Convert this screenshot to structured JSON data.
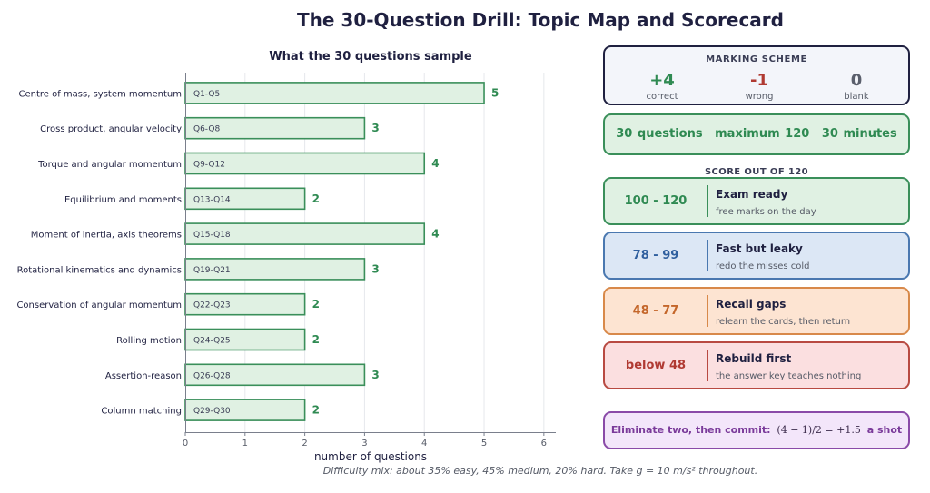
{
  "title": "The 30-Question Drill: Topic Map and Scorecard",
  "footer": "Difficulty mix: about 35% easy, 45% medium, 20% hard. Take g = 10 m/s² throughout.",
  "chart_data": {
    "type": "bar",
    "orientation": "horizontal",
    "title": "What the 30 questions sample",
    "xlabel": "number of questions",
    "ylabel": "",
    "xlim": [
      0,
      6.2
    ],
    "xticks": [
      0,
      1,
      2,
      3,
      4,
      5,
      6
    ],
    "grid": true,
    "categories": [
      "Centre of mass, system momentum",
      "Cross product, angular velocity",
      "Torque and angular momentum",
      "Equilibrium and moments",
      "Moment of inertia, axis theorems",
      "Rotational kinematics and dynamics",
      "Conservation of angular momentum",
      "Rolling motion",
      "Assertion-reason",
      "Column matching"
    ],
    "ranges": [
      "Q1-Q5",
      "Q6-Q8",
      "Q9-Q12",
      "Q13-Q14",
      "Q15-Q18",
      "Q19-Q21",
      "Q22-Q23",
      "Q24-Q25",
      "Q26-Q28",
      "Q29-Q30"
    ],
    "values": [
      5,
      3,
      4,
      2,
      4,
      3,
      2,
      2,
      3,
      2
    ],
    "colors": {
      "fill": "#e0f1e3",
      "stroke": "#3a8f5a",
      "label": "#2f8a52",
      "axis": "#7a7f8c",
      "grid": "#e6e8ec"
    }
  },
  "marking_scheme": {
    "heading": "MARKING SCHEME",
    "items": [
      {
        "value": "+4",
        "label": "correct",
        "color": "#2f8a52"
      },
      {
        "value": "-1",
        "label": "wrong",
        "color": "#b03a32"
      },
      {
        "value": "0",
        "label": "blank",
        "color": "#5a5f6c"
      }
    ]
  },
  "exam_facts": [
    "30 questions",
    "maximum 120",
    "30 minutes"
  ],
  "score_heading": "SCORE OUT OF 120",
  "score_bands": [
    {
      "range": "100 - 120",
      "title": "Exam ready",
      "subtitle": "free marks on the day",
      "bg": "#e0f1e3",
      "border": "#3a8f5a",
      "text": "#2f8a52"
    },
    {
      "range": "78 - 99",
      "title": "Fast but leaky",
      "subtitle": "redo the misses cold",
      "bg": "#dce7f5",
      "border": "#4a78b0",
      "text": "#2f5f9e"
    },
    {
      "range": "48 - 77",
      "title": "Recall gaps",
      "subtitle": "relearn the cards, then return",
      "bg": "#fde4d2",
      "border": "#d8894a",
      "text": "#c4662a"
    },
    {
      "range": "below 48",
      "title": "Rebuild first",
      "subtitle": "the answer key teaches nothing",
      "bg": "#fbdfe0",
      "border": "#b84a42",
      "text": "#b03a32"
    }
  ],
  "tip": {
    "lead": "Eliminate two, then commit:",
    "math": "(4 − 1)/2 = +1.5",
    "tail": "a shot"
  }
}
